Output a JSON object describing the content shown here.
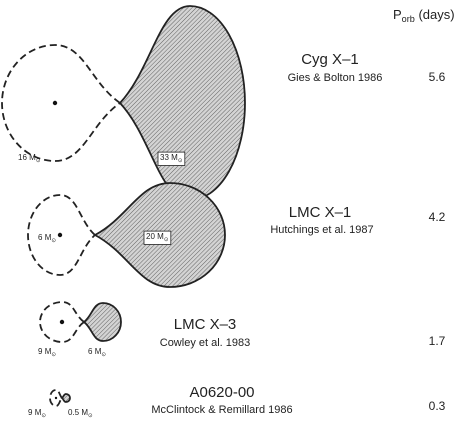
{
  "header": {
    "symbol": "P",
    "subscript": "orb",
    "unit": "(days)"
  },
  "systems": [
    {
      "name": "Cyg X–1",
      "reference": "Gies & Bolton 1986",
      "period": 5.6,
      "masses": [
        {
          "number": "16",
          "symbol": "M",
          "subscript": "⊙"
        },
        {
          "number": "33",
          "symbol": "M",
          "subscript": "⊙"
        }
      ]
    },
    {
      "name": "LMC X–1",
      "reference": "Hutchings et al. 1987",
      "period": 4.2,
      "masses": [
        {
          "number": "6",
          "symbol": "M",
          "subscript": "⊙"
        },
        {
          "number": "20",
          "symbol": "M",
          "subscript": "⊙"
        }
      ]
    },
    {
      "name": "LMC X–3",
      "reference": "Cowley et al. 1983",
      "period": 1.7,
      "masses": [
        {
          "number": "9",
          "symbol": "M",
          "subscript": "⊙"
        },
        {
          "number": "6",
          "symbol": "M",
          "subscript": "⊙"
        }
      ]
    },
    {
      "name": "A0620-00",
      "reference": "McClintock & Remillard 1986",
      "period": 0.3,
      "masses": [
        {
          "number": "9",
          "symbol": "M",
          "subscript": "⊙"
        },
        {
          "number": "0.5",
          "symbol": "M",
          "subscript": "⊙"
        }
      ]
    }
  ]
}
